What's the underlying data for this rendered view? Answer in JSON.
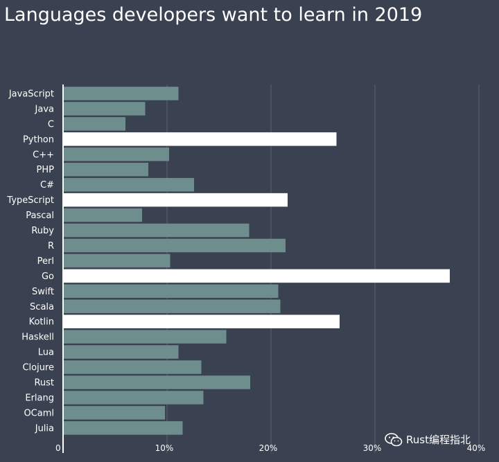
{
  "chart_data": {
    "type": "bar",
    "orientation": "horizontal",
    "title": "Languages developers want to learn in 2019",
    "categories": [
      "JavaScript",
      "Java",
      "C",
      "Python",
      "C++",
      "PHP",
      "C#",
      "TypeScript",
      "Pascal",
      "Ruby",
      "R",
      "Perl",
      "Go",
      "Swift",
      "Scala",
      "Kotlin",
      "Haskell",
      "Lua",
      "Clojure",
      "Rust",
      "Erlang",
      "OCaml",
      "Julia"
    ],
    "values": [
      11.1,
      7.9,
      6.0,
      26.3,
      10.2,
      8.2,
      12.6,
      21.6,
      7.6,
      17.9,
      21.4,
      10.3,
      37.2,
      20.7,
      20.9,
      26.6,
      15.7,
      11.1,
      13.3,
      18.0,
      13.5,
      9.8,
      11.5
    ],
    "highlighted": [
      "Python",
      "TypeScript",
      "Go",
      "Kotlin"
    ],
    "xticks": [
      "0",
      "10%",
      "20%",
      "30%",
      "40%"
    ],
    "xlim": [
      0,
      40
    ],
    "grid": true,
    "colors": {
      "bar": "#6e8e8e",
      "highlight": "#ffffff",
      "background": "#3a4150",
      "grid": "#5a6271"
    }
  },
  "watermark": {
    "text": "Rust编程指北",
    "icon": "wechat-icon"
  }
}
